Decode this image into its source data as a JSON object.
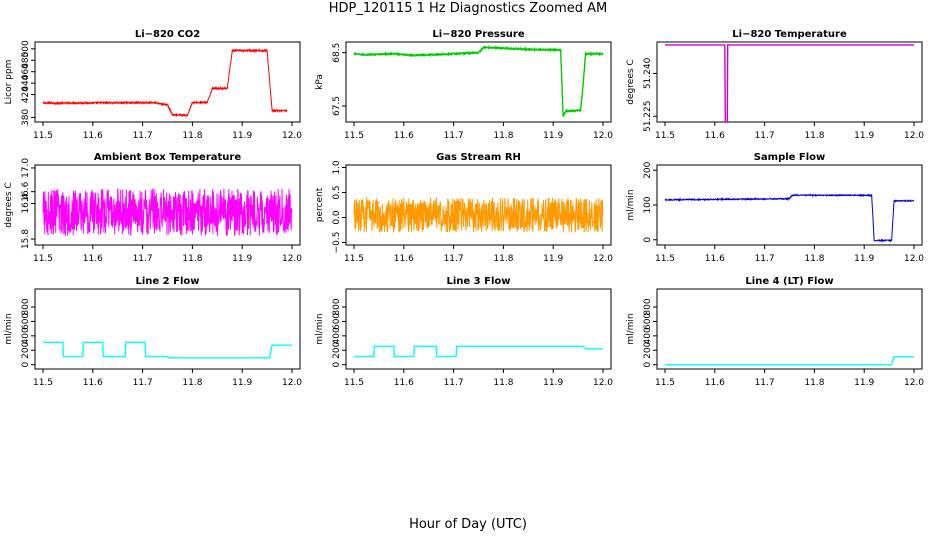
{
  "figure": {
    "title": "HDP_120115  1 Hz Diagnostics Zoomed AM",
    "xlabel": "Hour of Day (UTC)"
  },
  "chart_data": [
    {
      "type": "line",
      "title": "Li−820 CO2",
      "ylabel": "Licor ppm",
      "color": "#ff0000",
      "xlim": [
        11.5,
        12.0
      ],
      "ylim": [
        372,
        512
      ],
      "xticks": [
        "11.5",
        "11.6",
        "11.7",
        "11.8",
        "11.9",
        "12.0"
      ],
      "yticks": [
        {
          "v": 380,
          "label": "380"
        },
        {
          "v": 420,
          "label": "420"
        },
        {
          "v": 440,
          "label": "440"
        },
        {
          "v": 460,
          "label": "460"
        },
        {
          "v": 480,
          "label": "480"
        },
        {
          "v": 500,
          "label": "500"
        }
      ],
      "x": [
        11.5,
        11.72,
        11.75,
        11.76,
        11.79,
        11.8,
        11.83,
        11.84,
        11.87,
        11.88,
        11.95,
        11.96,
        11.99
      ],
      "y": [
        405,
        406,
        402,
        384,
        384,
        406,
        406,
        431,
        431,
        497,
        497,
        392,
        392
      ],
      "noise": 1.5
    },
    {
      "type": "line",
      "title": "Li−820 Pressure",
      "ylabel": "kPa",
      "color": "#00cc00",
      "xlim": [
        11.5,
        12.0
      ],
      "ylim": [
        67.2,
        68.7
      ],
      "xticks": [
        "11.5",
        "11.6",
        "11.7",
        "11.8",
        "11.9",
        "12.0"
      ],
      "yticks": [
        {
          "v": 67.5,
          "label": "67.5"
        },
        {
          "v": 68.5,
          "label": "68.5"
        }
      ],
      "x": [
        11.5,
        11.52,
        11.58,
        11.62,
        11.68,
        11.75,
        11.76,
        11.86,
        11.915,
        11.92,
        11.925,
        11.955,
        11.96,
        11.965,
        12.0
      ],
      "y": [
        68.48,
        68.46,
        68.48,
        68.45,
        68.47,
        68.5,
        68.6,
        68.56,
        68.55,
        67.3,
        67.4,
        67.42,
        67.9,
        68.48,
        68.48
      ],
      "noise": 0.01
    },
    {
      "type": "line",
      "title": "Li−820 Temperature",
      "ylabel": "degrees C",
      "color": "#cc00cc",
      "xlim": [
        11.5,
        12.0
      ],
      "ylim": [
        51.223,
        51.251
      ],
      "xticks": [
        "11.5",
        "11.6",
        "11.7",
        "11.8",
        "11.9",
        "12.0"
      ],
      "yticks": [
        {
          "v": 51.225,
          "label": "51.225"
        },
        {
          "v": 51.24,
          "label": "51.240"
        }
      ],
      "x": [
        11.5,
        11.62,
        11.621,
        11.625,
        11.626,
        12.0
      ],
      "y": [
        51.25,
        51.25,
        51.223,
        51.223,
        51.25,
        51.25
      ],
      "noise": 0
    },
    {
      "type": "line",
      "title": "Ambient Box Temperature",
      "ylabel": "degrees C",
      "color": "#ff00ff",
      "xlim": [
        11.5,
        12.0
      ],
      "ylim": [
        15.7,
        17.05
      ],
      "xticks": [
        "11.5",
        "11.6",
        "11.7",
        "11.8",
        "11.9",
        "12.0"
      ],
      "yticks": [
        {
          "v": 15.8,
          "label": "15.8"
        },
        {
          "v": 16.4,
          "label": "16.4"
        },
        {
          "v": 16.6,
          "label": "16.6"
        },
        {
          "v": 17.0,
          "label": "17.0"
        }
      ],
      "x": [
        11.5,
        12.0
      ],
      "y": [
        16.25,
        16.25
      ],
      "noise": 0.4
    },
    {
      "type": "line",
      "title": "Gas Stream RH",
      "ylabel": "percent",
      "color": "#ff9900",
      "xlim": [
        11.5,
        12.0
      ],
      "ylim": [
        -0.55,
        1.05
      ],
      "xticks": [
        "11.5",
        "11.6",
        "11.7",
        "11.8",
        "11.9",
        "12.0"
      ],
      "yticks": [
        {
          "v": -0.5,
          "label": "−0.5"
        },
        {
          "v": 0.0,
          "label": "0.0"
        },
        {
          "v": 0.5,
          "label": "0.5"
        },
        {
          "v": 1.0,
          "label": "1.0"
        }
      ],
      "x": [
        11.5,
        12.0
      ],
      "y": [
        0.05,
        0.05
      ],
      "noise": 0.35
    },
    {
      "type": "line",
      "title": "Sample Flow",
      "ylabel": "ml/min",
      "color": "#0000cc",
      "xlim": [
        11.5,
        12.0
      ],
      "ylim": [
        -15,
        215
      ],
      "xticks": [
        "11.5",
        "11.6",
        "11.7",
        "11.8",
        "11.9",
        "12.0"
      ],
      "yticks": [
        {
          "v": 0,
          "label": "0"
        },
        {
          "v": 100,
          "label": "100"
        },
        {
          "v": 200,
          "label": "200"
        }
      ],
      "x": [
        11.5,
        11.75,
        11.755,
        11.915,
        11.92,
        11.955,
        11.96,
        12.0
      ],
      "y": [
        115,
        118,
        128,
        128,
        -2,
        -2,
        112,
        112
      ],
      "noise": 1.5
    },
    {
      "type": "line",
      "title": "Line 2 Flow",
      "ylabel": "ml/min",
      "color": "#00ffff",
      "xlim": [
        11.5,
        12.0
      ],
      "ylim": [
        -60,
        1050
      ],
      "xticks": [
        "11.5",
        "11.6",
        "11.7",
        "11.8",
        "11.9",
        "12.0"
      ],
      "yticks": [
        {
          "v": 0,
          "label": "0"
        },
        {
          "v": 200,
          "label": "200"
        },
        {
          "v": 400,
          "label": "400"
        },
        {
          "v": 600,
          "label": "600"
        },
        {
          "v": 800,
          "label": "800"
        }
      ],
      "x": [
        11.5,
        11.54,
        11.541,
        11.58,
        11.581,
        11.62,
        11.621,
        11.665,
        11.666,
        11.705,
        11.706,
        11.75,
        11.751,
        11.955,
        11.96,
        12.0
      ],
      "y": [
        310,
        310,
        115,
        115,
        310,
        310,
        115,
        115,
        310,
        310,
        115,
        115,
        95,
        95,
        270,
        270
      ],
      "noise": 0
    },
    {
      "type": "line",
      "title": "Line 3 Flow",
      "ylabel": "ml/min",
      "color": "#00ffff",
      "xlim": [
        11.5,
        12.0
      ],
      "ylim": [
        -60,
        1050
      ],
      "xticks": [
        "11.5",
        "11.6",
        "11.7",
        "11.8",
        "11.9",
        "12.0"
      ],
      "yticks": [
        {
          "v": 0,
          "label": "0"
        },
        {
          "v": 200,
          "label": "200"
        },
        {
          "v": 400,
          "label": "400"
        },
        {
          "v": 600,
          "label": "600"
        },
        {
          "v": 800,
          "label": "800"
        }
      ],
      "x": [
        11.5,
        11.54,
        11.541,
        11.58,
        11.581,
        11.62,
        11.621,
        11.665,
        11.666,
        11.705,
        11.706,
        11.96,
        11.965,
        12.0
      ],
      "y": [
        115,
        115,
        255,
        255,
        115,
        115,
        255,
        255,
        115,
        115,
        255,
        255,
        220,
        220
      ],
      "noise": 0
    },
    {
      "type": "line",
      "title": "Line 4 (LT) Flow",
      "ylabel": "ml/min",
      "color": "#00ffff",
      "xlim": [
        11.5,
        12.0
      ],
      "ylim": [
        -60,
        1050
      ],
      "xticks": [
        "11.5",
        "11.6",
        "11.7",
        "11.8",
        "11.9",
        "12.0"
      ],
      "yticks": [
        {
          "v": 0,
          "label": "0"
        },
        {
          "v": 200,
          "label": "200"
        },
        {
          "v": 400,
          "label": "400"
        },
        {
          "v": 600,
          "label": "600"
        },
        {
          "v": 800,
          "label": "800"
        }
      ],
      "x": [
        11.5,
        11.955,
        11.96,
        12.0
      ],
      "y": [
        0,
        0,
        110,
        110
      ],
      "noise": 0
    }
  ]
}
